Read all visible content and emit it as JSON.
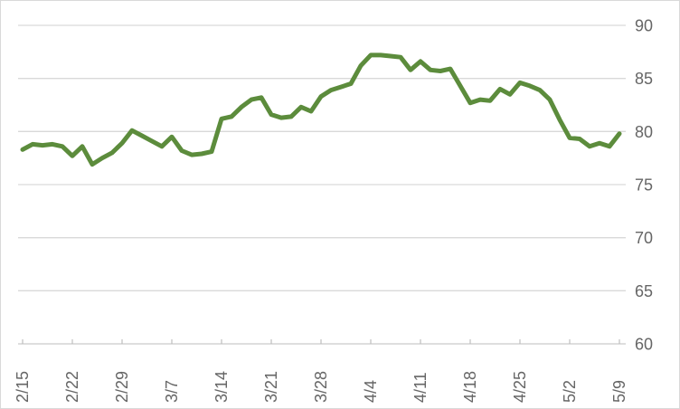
{
  "chart_data": {
    "type": "line",
    "title": "",
    "xlabel": "",
    "ylabel": "",
    "x_tick_labels": [
      "2/15",
      "2/22",
      "2/29",
      "3/7",
      "3/14",
      "3/21",
      "3/28",
      "4/4",
      "4/11",
      "4/18",
      "4/25",
      "5/2",
      "5/9"
    ],
    "x_tick_interval_points": 5,
    "values": [
      78.3,
      78.8,
      78.7,
      78.8,
      78.6,
      77.7,
      78.6,
      76.9,
      77.5,
      78.0,
      78.9,
      80.1,
      79.6,
      79.1,
      78.6,
      79.5,
      78.2,
      77.8,
      77.9,
      78.1,
      81.2,
      81.4,
      82.3,
      83.0,
      83.2,
      81.6,
      81.3,
      81.4,
      82.3,
      81.9,
      83.3,
      83.9,
      84.2,
      84.5,
      86.2,
      87.2,
      87.2,
      87.1,
      87.0,
      85.8,
      86.6,
      85.8,
      85.7,
      85.9,
      84.3,
      82.7,
      83.0,
      82.9,
      84.0,
      83.5,
      84.6,
      84.3,
      83.9,
      83.0,
      81.1,
      79.4,
      79.3,
      78.6,
      78.9,
      78.6,
      79.8
    ],
    "y_ticks": [
      60,
      65,
      70,
      75,
      80,
      85,
      90
    ],
    "ylim": [
      60,
      90
    ],
    "y_axis_side": "right",
    "grid": "horizontal",
    "legend": "none",
    "colors": {
      "line": "#5c8c3c",
      "gridline": "#d9d9d9",
      "axis_line": "#c9c9c9",
      "tick_mark": "#bfbfbf",
      "label": "#666666",
      "background": "#ffffff",
      "border": "#d9d9d9"
    }
  }
}
